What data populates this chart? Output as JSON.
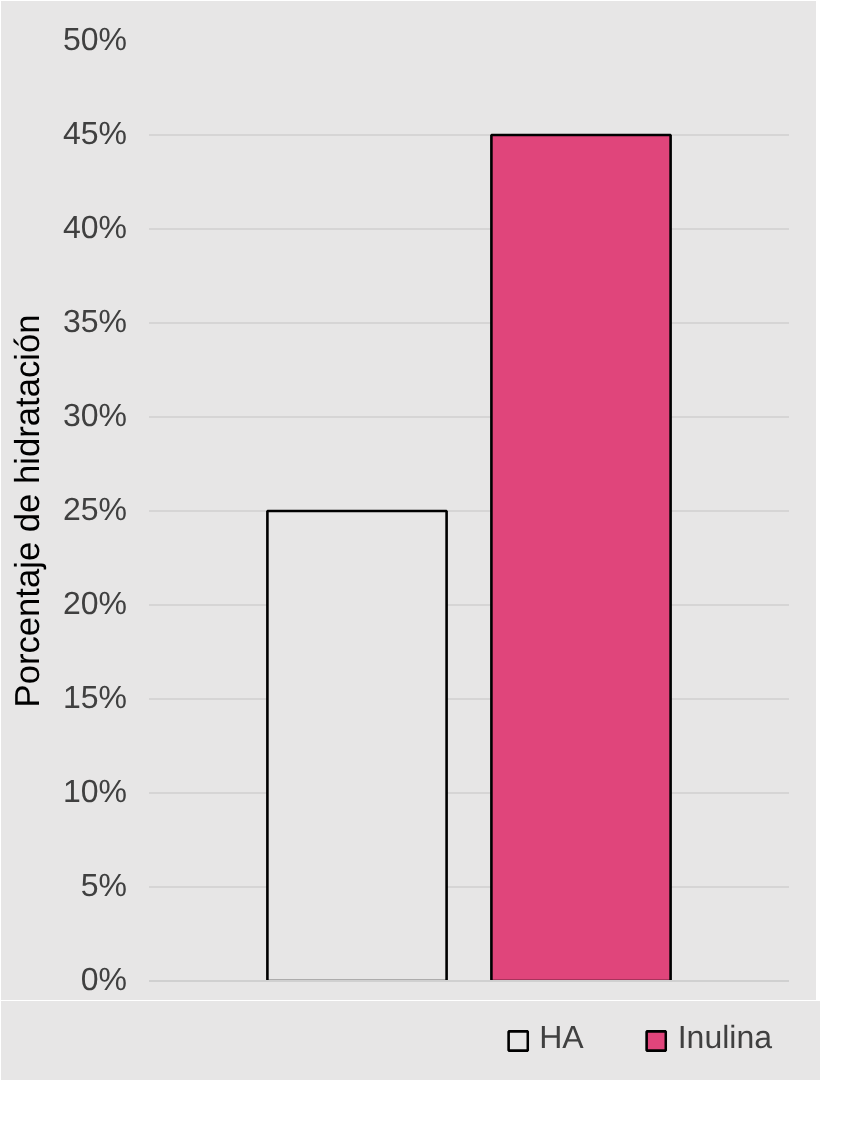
{
  "chart_data": {
    "type": "bar",
    "ylabel": "Porcentaje de hidratación",
    "categories": [
      null
    ],
    "series": [
      {
        "name": "HA",
        "color": "#e7e6e6",
        "values": [
          25
        ]
      },
      {
        "name": "Inulina",
        "color": "#e0457b",
        "values": [
          45
        ]
      }
    ],
    "ylim": [
      0,
      50
    ],
    "yticks": [
      {
        "value": 0,
        "label": "0%"
      },
      {
        "value": 5,
        "label": "5%"
      },
      {
        "value": 10,
        "label": "10%"
      },
      {
        "value": 15,
        "label": "15%"
      },
      {
        "value": 20,
        "label": "20%"
      },
      {
        "value": 25,
        "label": "25%"
      },
      {
        "value": 30,
        "label": "30%"
      },
      {
        "value": 35,
        "label": "35%"
      },
      {
        "value": 40,
        "label": "40%"
      },
      {
        "value": 45,
        "label": "45%"
      },
      {
        "value": 50,
        "label": "50%"
      }
    ],
    "grid": "y",
    "legend": "bottom"
  }
}
